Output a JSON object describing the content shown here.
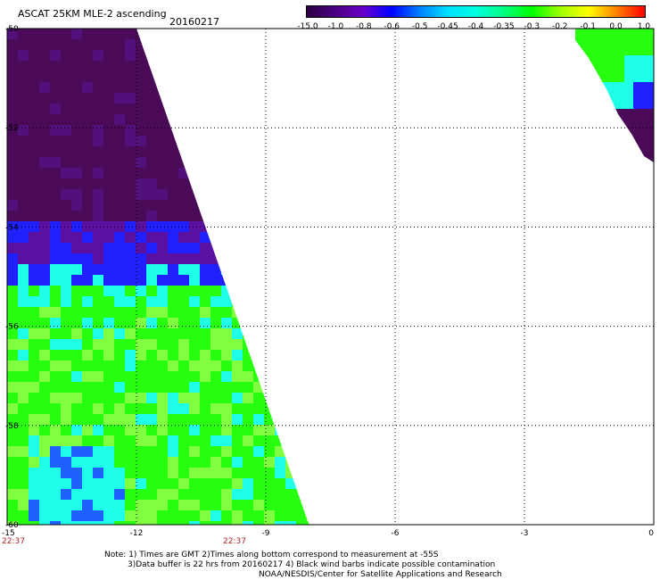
{
  "header": {
    "title": "ASCAT 25KM MLE-2 ascending",
    "date": "20160217"
  },
  "colorbar": {
    "labels": [
      "-15.0",
      "-1.0",
      "-0.8",
      "-0.6",
      "-0.5",
      "-0.45",
      "-0.4",
      "-0.35",
      "-0.3",
      "-0.2",
      "-0.1",
      "0.0",
      "1.0"
    ],
    "stops": [
      "#2a0040",
      "#4b0082",
      "#6a00c8",
      "#0000ff",
      "#0080ff",
      "#00e0ff",
      "#00ffe0",
      "#00ff80",
      "#00ff00",
      "#a0ff00",
      "#ffff00",
      "#ff8000",
      "#ff0000"
    ]
  },
  "map": {
    "lat_labels": [
      "-50",
      "-52",
      "-54",
      "-56",
      "-58",
      "-60"
    ],
    "lon_labels": [
      "-15",
      "-12",
      "-9",
      "-6",
      "-3",
      "0"
    ],
    "time_labels": [
      "22:37",
      "22:37"
    ],
    "x_range": [
      -15,
      0
    ],
    "y_range": [
      -60,
      -50
    ],
    "colors": {
      "dark_purple": "#4a0a58",
      "purple": "#5a10a0",
      "blue": "#2020ff",
      "cyan": "#20ffe8",
      "green": "#28ff10",
      "light_green": "#80ff40"
    }
  },
  "notes": {
    "line1": "Note: 1) Times are GMT 2)Times along bottom correspond to measurement at -55S",
    "line2": "3)Data buffer is 22 hrs from 20160217 4) Black wind barbs indicate possible contamination",
    "line3": "NOAA/NESDIS/Center for Satellite Applications and Research"
  }
}
